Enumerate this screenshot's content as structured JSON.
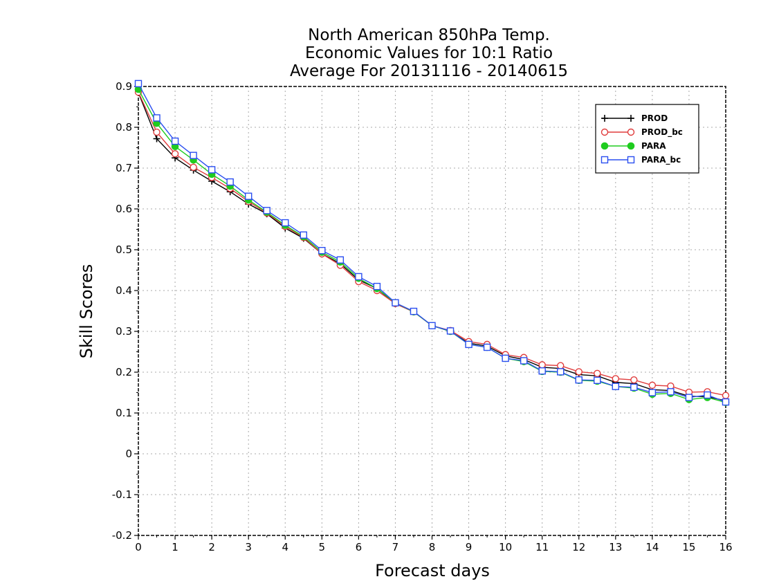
{
  "chart_data": {
    "type": "line",
    "title": [
      "North American 850hPa Temp.",
      "Economic Values for 10:1 Ratio",
      "Average For 20131116 - 20140615"
    ],
    "xlabel": "Forecast days",
    "ylabel": "Skill Scores",
    "xlim": [
      0,
      16
    ],
    "ylim": [
      -0.2,
      0.9
    ],
    "xticks": [
      "0",
      "1",
      "2",
      "3",
      "4",
      "5",
      "6",
      "7",
      "8",
      "9",
      "10",
      "11",
      "12",
      "13",
      "14",
      "15",
      "16"
    ],
    "yticks": [
      "0.9",
      "0.8",
      "0.7",
      "0.6",
      "0.5",
      "0.4",
      "0.3",
      "0.2",
      "0.1",
      "0",
      "-0.1",
      "-0.2"
    ],
    "grid": true,
    "legend_position": "top-right",
    "x": [
      0,
      0.5,
      1,
      1.5,
      2,
      2.5,
      3,
      3.5,
      4,
      4.5,
      5,
      5.5,
      6,
      6.5,
      7,
      7.5,
      8,
      8.5,
      9,
      9.5,
      10,
      10.5,
      11,
      11.5,
      12,
      12.5,
      13,
      13.5,
      14,
      14.5,
      15,
      15.5,
      16
    ],
    "series": [
      {
        "name": "PROD",
        "color": "#000000",
        "marker": "plus",
        "values": [
          0.885,
          0.772,
          0.725,
          0.695,
          0.668,
          0.642,
          0.612,
          0.588,
          0.553,
          0.528,
          0.49,
          0.466,
          0.426,
          0.405,
          0.368,
          0.348,
          0.314,
          0.3,
          0.271,
          0.264,
          0.24,
          0.231,
          0.212,
          0.209,
          0.194,
          0.191,
          0.175,
          0.172,
          0.157,
          0.155,
          0.141,
          0.14,
          0.13
        ]
      },
      {
        "name": "PROD_bc",
        "color": "#e03c3c",
        "marker": "circle-open",
        "values": [
          0.886,
          0.788,
          0.735,
          0.702,
          0.677,
          0.65,
          0.618,
          0.59,
          0.557,
          0.53,
          0.49,
          0.462,
          0.422,
          0.4,
          0.368,
          0.348,
          0.314,
          0.302,
          0.275,
          0.268,
          0.243,
          0.236,
          0.218,
          0.216,
          0.201,
          0.197,
          0.184,
          0.181,
          0.168,
          0.166,
          0.151,
          0.152,
          0.143
        ]
      },
      {
        "name": "PARA",
        "color": "#1fcc1f",
        "marker": "circle-filled",
        "values": [
          0.893,
          0.81,
          0.753,
          0.72,
          0.685,
          0.656,
          0.622,
          0.592,
          0.56,
          0.532,
          0.494,
          0.47,
          0.43,
          0.405,
          0.37,
          0.348,
          0.314,
          0.3,
          0.268,
          0.261,
          0.234,
          0.226,
          0.202,
          0.2,
          0.18,
          0.178,
          0.165,
          0.161,
          0.146,
          0.148,
          0.133,
          0.138,
          0.126
        ]
      },
      {
        "name": "PARA_bc",
        "color": "#2a4ef0",
        "marker": "square-open",
        "values": [
          0.907,
          0.823,
          0.766,
          0.731,
          0.696,
          0.666,
          0.631,
          0.596,
          0.566,
          0.536,
          0.498,
          0.475,
          0.434,
          0.41,
          0.37,
          0.349,
          0.314,
          0.301,
          0.268,
          0.261,
          0.234,
          0.228,
          0.203,
          0.201,
          0.181,
          0.18,
          0.165,
          0.163,
          0.15,
          0.152,
          0.138,
          0.144,
          0.127
        ]
      }
    ]
  }
}
